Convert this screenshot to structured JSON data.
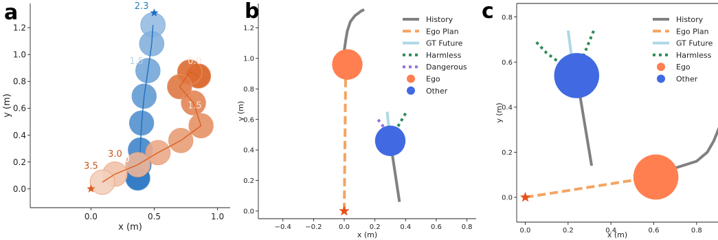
{
  "panel_labels": [
    "a",
    "b",
    "c"
  ],
  "colors": {
    "ego": "#ff7f50",
    "other": "#4169e1",
    "history": "#808080",
    "ego_plan": "#f4a460",
    "gt_future": "#add8e6",
    "harmless": "#2e8b57",
    "dangerous": "#9370db",
    "start_star": "#e8501a",
    "blue_traj": "#1f6fc0",
    "orange_traj": "#d95f20"
  },
  "chart_data": [
    {
      "type": "scatter",
      "panel": "a",
      "xlabel": "x (m)",
      "ylabel": "y (m)",
      "xlim": [
        -0.48,
        1.1
      ],
      "ylim": [
        -0.14,
        1.38
      ],
      "xticks": [
        "0.0",
        "0.5",
        "1.0"
      ],
      "xtick_values": [
        0.0,
        0.5,
        1.0
      ],
      "yticks": [
        "0.0",
        "0.2",
        "0.4",
        "0.6",
        "0.8",
        "1.0",
        "1.2"
      ],
      "ytick_values": [
        0.0,
        0.2,
        0.4,
        0.6,
        0.8,
        1.0,
        1.2
      ],
      "series": [
        {
          "color": "#1f6fc0",
          "x": [
            0.49,
            0.48,
            0.45,
            0.42,
            0.4,
            0.39,
            0.38,
            0.37
          ],
          "y": [
            1.22,
            1.08,
            0.88,
            0.69,
            0.49,
            0.29,
            0.18,
            0.08
          ],
          "start": [
            0.5,
            1.31
          ]
        },
        {
          "color": "#d95f20",
          "x": [
            0.85,
            0.78,
            0.7,
            0.81,
            0.87,
            0.71,
            0.53,
            0.37,
            0.19,
            0.09
          ],
          "y": [
            0.84,
            0.87,
            0.76,
            0.64,
            0.47,
            0.36,
            0.27,
            0.18,
            0.11,
            0.05
          ],
          "start": [
            0.0,
            0.0
          ]
        }
      ],
      "annotations": [
        {
          "text": "2.3",
          "x": 0.4,
          "y": 1.34,
          "color": "#1f7fb8"
        },
        {
          "text": "1.5",
          "x": 0.36,
          "y": 0.93,
          "color": "#b7d4ea"
        },
        {
          "text": "0.0",
          "x": 0.25,
          "y": 0.2,
          "color": "#ffffff"
        },
        {
          "text": "0.0",
          "x": 0.82,
          "y": 0.93,
          "color": "#fde3d3"
        },
        {
          "text": "1.5",
          "x": 0.82,
          "y": 0.6,
          "color": "#fde3d3"
        },
        {
          "text": "3.0",
          "x": 0.19,
          "y": 0.24,
          "color": "#c8541a"
        },
        {
          "text": "3.5",
          "x": 0.0,
          "y": 0.15,
          "color": "#c8541a"
        }
      ]
    },
    {
      "type": "line",
      "panel": "b",
      "xlabel": "x (m)",
      "ylabel": "y (m)",
      "xlim": [
        -0.56,
        0.86
      ],
      "ylim": [
        -0.05,
        1.36
      ],
      "xticks": [
        "−0.4",
        "−0.2",
        "0.0",
        "0.2",
        "0.4",
        "0.6",
        "0.8"
      ],
      "xtick_values": [
        -0.4,
        -0.2,
        0.0,
        0.2,
        0.4,
        0.6,
        0.8
      ],
      "yticks": [
        "0.0",
        "0.2",
        "0.4",
        "0.6",
        "0.8",
        "1.0",
        "1.2"
      ],
      "ytick_values": [
        0.0,
        0.2,
        0.4,
        0.6,
        0.8,
        1.0,
        1.2
      ],
      "lines": [
        {
          "kind": "history",
          "x": [
            0.0,
            0.01,
            0.02,
            0.04,
            0.07,
            0.11,
            0.13
          ],
          "y": [
            1.05,
            1.12,
            1.18,
            1.24,
            1.28,
            1.31,
            1.32
          ]
        },
        {
          "kind": "ego_plan",
          "x": [
            0.0,
            0.01
          ],
          "y": [
            0.0,
            0.95
          ]
        },
        {
          "kind": "history",
          "x": [
            0.36,
            0.3
          ],
          "y": [
            0.06,
            0.46
          ]
        },
        {
          "kind": "gt_future",
          "x": [
            0.3,
            0.28
          ],
          "y": [
            0.46,
            0.65
          ]
        },
        {
          "kind": "harmless",
          "x": [
            0.33,
            0.4
          ],
          "y": [
            0.52,
            0.64
          ]
        },
        {
          "kind": "dangerous",
          "x": [
            0.28,
            0.22
          ],
          "y": [
            0.52,
            0.6
          ]
        }
      ],
      "ego": {
        "x": 0.02,
        "y": 0.96,
        "r": 0.1
      },
      "other": {
        "x": 0.3,
        "y": 0.46,
        "r": 0.1
      },
      "start": {
        "x": 0.0,
        "y": 0.0
      },
      "legend": [
        "History",
        "Ego Plan",
        "GT Future",
        "Harmless",
        "Dangerous",
        "Ego",
        "Other"
      ],
      "legend_loc": "top-right"
    },
    {
      "type": "line",
      "panel": "c",
      "xlabel": "x (m)",
      "ylabel": "y (m)",
      "xlim": [
        -0.04,
        0.9
      ],
      "ylim": [
        -0.11,
        0.86
      ],
      "xticks": [
        "0.0",
        "0.2",
        "0.4",
        "0.6",
        "0.8"
      ],
      "xtick_values": [
        0.0,
        0.2,
        0.4,
        0.6,
        0.8
      ],
      "yticks": [
        "0.0",
        "0.2",
        "0.4",
        "0.6",
        "0.8"
      ],
      "ytick_values": [
        0.0,
        0.2,
        0.4,
        0.6,
        0.8
      ],
      "lines": [
        {
          "kind": "history",
          "x": [
            0.61,
            0.7,
            0.8,
            0.85,
            0.88,
            0.91
          ],
          "y": [
            0.09,
            0.13,
            0.16,
            0.2,
            0.25,
            0.32
          ]
        },
        {
          "kind": "ego_plan",
          "x": [
            0.0,
            0.6
          ],
          "y": [
            0.0,
            0.09
          ]
        },
        {
          "kind": "history",
          "x": [
            0.31,
            0.24
          ],
          "y": [
            0.14,
            0.54
          ]
        },
        {
          "kind": "gt_future",
          "x": [
            0.22,
            0.2
          ],
          "y": [
            0.6,
            0.74
          ]
        },
        {
          "kind": "harmless",
          "x": [
            0.26,
            0.32
          ],
          "y": [
            0.6,
            0.74
          ]
        },
        {
          "kind": "harmless",
          "x": [
            0.17,
            0.1,
            0.05
          ],
          "y": [
            0.59,
            0.64,
            0.69
          ]
        }
      ],
      "ego": {
        "x": 0.61,
        "y": 0.09,
        "r": 0.1
      },
      "other": {
        "x": 0.24,
        "y": 0.54,
        "r": 0.1
      },
      "start": {
        "x": 0.0,
        "y": 0.0
      },
      "legend": [
        "History",
        "Ego Plan",
        "GT Future",
        "Harmless",
        "Ego",
        "Other"
      ],
      "legend_loc": "top-right"
    }
  ]
}
